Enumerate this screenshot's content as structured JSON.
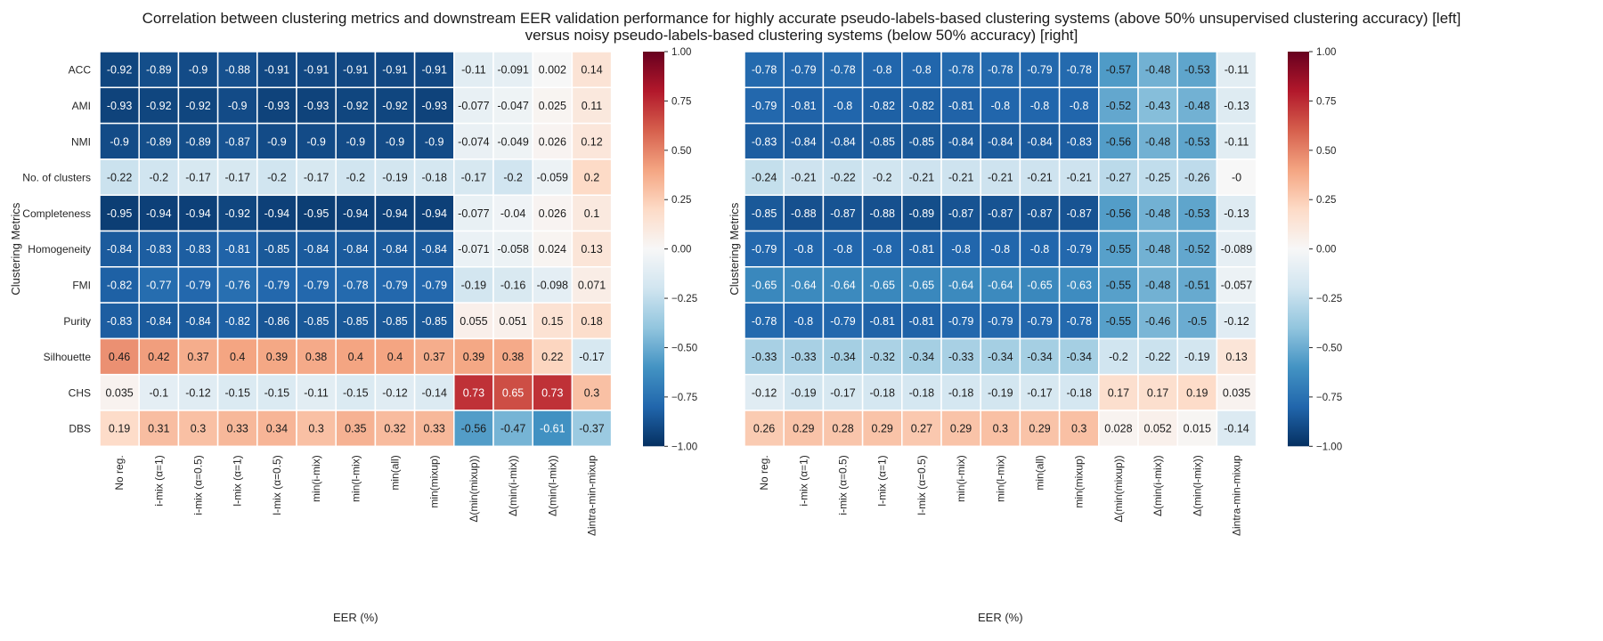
{
  "title_lines": [
    "Correlation between clustering metrics and downstream EER validation performance for highly accurate pseudo-labels-based clustering systems (above 50% unsupervised clustering accuracy) [left]",
    "versus noisy pseudo-labels-based clustering systems (below 50% accuracy) [right]"
  ],
  "chart_data": [
    {
      "type": "heatmap",
      "panel": "left",
      "xlabel": "EER (%)",
      "ylabel": "Clustering Metrics",
      "colormap": "RdBu_r",
      "vmin": -1.0,
      "vmax": 1.0,
      "colorbar_ticks": [
        "1.00",
        "0.75",
        "0.50",
        "0.25",
        "0.00",
        "−0.25",
        "−0.50",
        "−0.75",
        "−1.00"
      ],
      "columns": [
        "No reg.",
        "i-mix (α=1)",
        "i-mix (α=0.5)",
        "l-mix (α=1)",
        "l-mix (α=0.5)",
        "min(i-mix)",
        "min(l-mix)",
        "min(all)",
        "min(mixup)",
        "Δ(min(mixup))",
        "Δ(min(i-mix))",
        "Δ(min(l-mix))",
        "Δintra-min-mixup"
      ],
      "rows": [
        "ACC",
        "AMI",
        "NMI",
        "No. of clusters",
        "Completeness",
        "Homogeneity",
        "FMI",
        "Purity",
        "Silhouette",
        "CHS",
        "DBS"
      ],
      "values": [
        [
          "-0.92",
          "-0.89",
          "-0.9",
          "-0.88",
          "-0.91",
          "-0.91",
          "-0.91",
          "-0.91",
          "-0.91",
          "-0.11",
          "-0.091",
          "0.002",
          "0.14"
        ],
        [
          "-0.93",
          "-0.92",
          "-0.92",
          "-0.9",
          "-0.93",
          "-0.93",
          "-0.92",
          "-0.92",
          "-0.93",
          "-0.077",
          "-0.047",
          "0.025",
          "0.11"
        ],
        [
          "-0.9",
          "-0.89",
          "-0.89",
          "-0.87",
          "-0.9",
          "-0.9",
          "-0.9",
          "-0.9",
          "-0.9",
          "-0.074",
          "-0.049",
          "0.026",
          "0.12"
        ],
        [
          "-0.22",
          "-0.2",
          "-0.17",
          "-0.17",
          "-0.2",
          "-0.17",
          "-0.2",
          "-0.19",
          "-0.18",
          "-0.17",
          "-0.2",
          "-0.059",
          "0.2"
        ],
        [
          "-0.95",
          "-0.94",
          "-0.94",
          "-0.92",
          "-0.94",
          "-0.95",
          "-0.94",
          "-0.94",
          "-0.94",
          "-0.077",
          "-0.04",
          "0.026",
          "0.1"
        ],
        [
          "-0.84",
          "-0.83",
          "-0.83",
          "-0.81",
          "-0.85",
          "-0.84",
          "-0.84",
          "-0.84",
          "-0.84",
          "-0.071",
          "-0.058",
          "0.024",
          "0.13"
        ],
        [
          "-0.82",
          "-0.77",
          "-0.79",
          "-0.76",
          "-0.79",
          "-0.79",
          "-0.78",
          "-0.79",
          "-0.79",
          "-0.19",
          "-0.16",
          "-0.098",
          "0.071"
        ],
        [
          "-0.83",
          "-0.84",
          "-0.84",
          "-0.82",
          "-0.86",
          "-0.85",
          "-0.85",
          "-0.85",
          "-0.85",
          "0.055",
          "0.051",
          "0.15",
          "0.18"
        ],
        [
          "0.46",
          "0.42",
          "0.37",
          "0.4",
          "0.39",
          "0.38",
          "0.4",
          "0.4",
          "0.37",
          "0.39",
          "0.38",
          "0.22",
          "-0.17"
        ],
        [
          "0.035",
          "-0.1",
          "-0.12",
          "-0.15",
          "-0.15",
          "-0.11",
          "-0.15",
          "-0.12",
          "-0.14",
          "0.73",
          "0.65",
          "0.73",
          "0.3"
        ],
        [
          "0.19",
          "0.31",
          "0.3",
          "0.33",
          "0.34",
          "0.3",
          "0.35",
          "0.32",
          "0.33",
          "-0.56",
          "-0.47",
          "-0.61",
          "-0.37"
        ]
      ]
    },
    {
      "type": "heatmap",
      "panel": "right",
      "xlabel": "EER (%)",
      "ylabel": "Clustering Metrics",
      "colormap": "RdBu_r",
      "vmin": -1.0,
      "vmax": 1.0,
      "colorbar_ticks": [
        "1.00",
        "0.75",
        "0.50",
        "0.25",
        "0.00",
        "−0.25",
        "−0.50",
        "−0.75",
        "−1.00"
      ],
      "columns": [
        "No reg.",
        "i-mix (α=1)",
        "i-mix (α=0.5)",
        "l-mix (α=1)",
        "l-mix (α=0.5)",
        "min(i-mix)",
        "min(l-mix)",
        "min(all)",
        "min(mixup)",
        "Δ(min(mixup))",
        "Δ(min(i-mix))",
        "Δ(min(l-mix))",
        "Δintra-min-mixup"
      ],
      "rows": [],
      "values": [
        [
          "-0.78",
          "-0.79",
          "-0.78",
          "-0.8",
          "-0.8",
          "-0.78",
          "-0.78",
          "-0.79",
          "-0.78",
          "-0.57",
          "-0.48",
          "-0.53",
          "-0.11"
        ],
        [
          "-0.79",
          "-0.81",
          "-0.8",
          "-0.82",
          "-0.82",
          "-0.81",
          "-0.8",
          "-0.8",
          "-0.8",
          "-0.52",
          "-0.43",
          "-0.48",
          "-0.13"
        ],
        [
          "-0.83",
          "-0.84",
          "-0.84",
          "-0.85",
          "-0.85",
          "-0.84",
          "-0.84",
          "-0.84",
          "-0.83",
          "-0.56",
          "-0.48",
          "-0.53",
          "-0.11"
        ],
        [
          "-0.24",
          "-0.21",
          "-0.22",
          "-0.2",
          "-0.21",
          "-0.21",
          "-0.21",
          "-0.21",
          "-0.21",
          "-0.27",
          "-0.25",
          "-0.26",
          "-0"
        ],
        [
          "-0.85",
          "-0.88",
          "-0.87",
          "-0.88",
          "-0.89",
          "-0.87",
          "-0.87",
          "-0.87",
          "-0.87",
          "-0.56",
          "-0.48",
          "-0.53",
          "-0.13"
        ],
        [
          "-0.79",
          "-0.8",
          "-0.8",
          "-0.8",
          "-0.81",
          "-0.8",
          "-0.8",
          "-0.8",
          "-0.79",
          "-0.55",
          "-0.48",
          "-0.52",
          "-0.089"
        ],
        [
          "-0.65",
          "-0.64",
          "-0.64",
          "-0.65",
          "-0.65",
          "-0.64",
          "-0.64",
          "-0.65",
          "-0.63",
          "-0.55",
          "-0.48",
          "-0.51",
          "-0.057"
        ],
        [
          "-0.78",
          "-0.8",
          "-0.79",
          "-0.81",
          "-0.81",
          "-0.79",
          "-0.79",
          "-0.79",
          "-0.78",
          "-0.55",
          "-0.46",
          "-0.5",
          "-0.12"
        ],
        [
          "-0.33",
          "-0.33",
          "-0.34",
          "-0.32",
          "-0.34",
          "-0.33",
          "-0.34",
          "-0.34",
          "-0.34",
          "-0.2",
          "-0.22",
          "-0.19",
          "0.13"
        ],
        [
          "-0.12",
          "-0.19",
          "-0.17",
          "-0.18",
          "-0.18",
          "-0.18",
          "-0.19",
          "-0.17",
          "-0.18",
          "0.17",
          "0.17",
          "0.19",
          "0.035"
        ],
        [
          "0.26",
          "0.29",
          "0.28",
          "0.29",
          "0.27",
          "0.29",
          "0.3",
          "0.29",
          "0.3",
          "0.028",
          "0.052",
          "0.015",
          "-0.14"
        ]
      ]
    }
  ]
}
